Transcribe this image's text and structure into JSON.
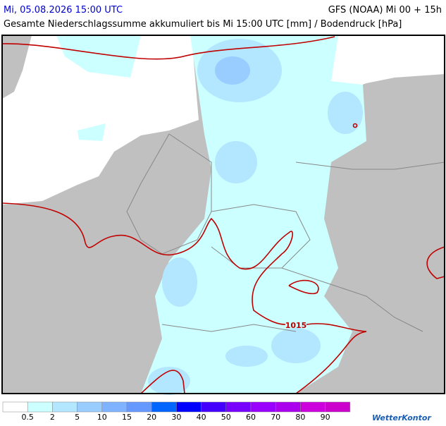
{
  "header": {
    "valid_time": "Mi, 05.08.2026 15:00 UTC",
    "model": "GFS (NOAA) Mi 00 + 15h",
    "title": "Gesamte Niederschlagssumme akkumuliert bis Mi 15:00 UTC [mm] / Bodendruck [hPa]"
  },
  "map": {
    "isobar_labels": [
      1015
    ]
  },
  "legend": {
    "colors": [
      "#ffffff",
      "#ccffff",
      "#b3e6ff",
      "#99ccff",
      "#80b3ff",
      "#6699ff",
      "#0066ff",
      "#0000ff",
      "#4400ff",
      "#7700ff",
      "#9900ff",
      "#aa00ee",
      "#cc00dd",
      "#cc00cc"
    ],
    "thresholds": [
      0.5,
      2,
      5,
      10,
      15,
      20,
      30,
      40,
      50,
      60,
      70,
      80,
      90
    ]
  },
  "logo": "WetterKontor"
}
